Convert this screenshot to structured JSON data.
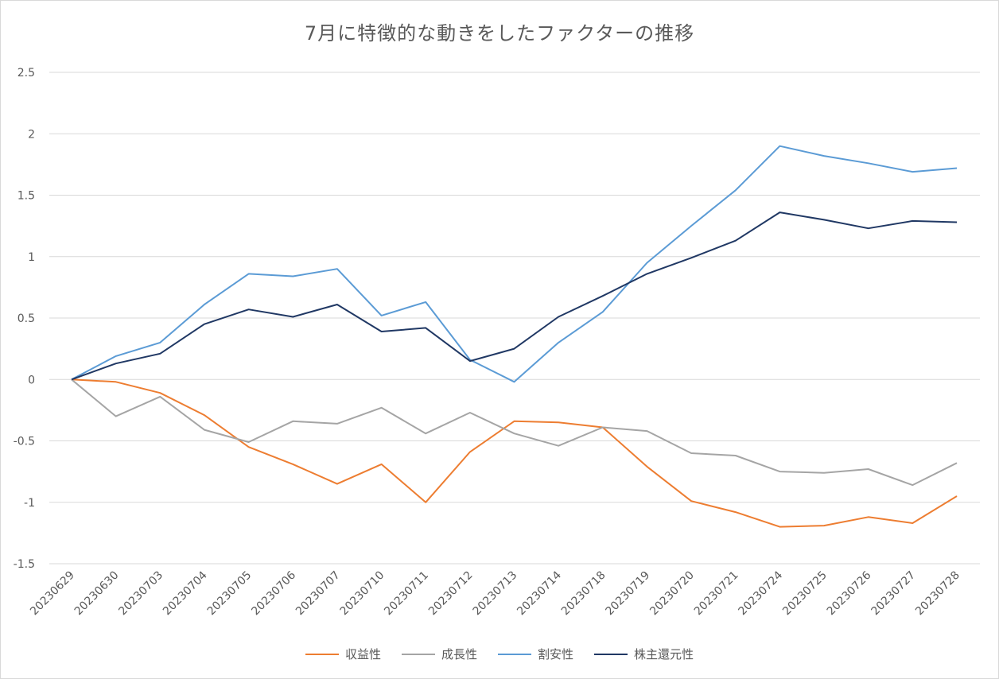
{
  "chart_data": {
    "type": "line",
    "title": "7月に特徴的な動きをしたファクターの推移",
    "xlabel": "",
    "ylabel": "",
    "ylim": [
      -1.5,
      2.5
    ],
    "yticks": [
      2.5,
      2,
      1.5,
      1,
      0.5,
      0,
      -0.5,
      -1,
      -1.5
    ],
    "ytick_labels": [
      "2.5",
      "2",
      "1.5",
      "1",
      "0.5",
      "0",
      "-0.5",
      "-1",
      "-1.5"
    ],
    "grid": true,
    "legend_position": "bottom",
    "categories": [
      "20230629",
      "20230630",
      "20230703",
      "20230704",
      "20230705",
      "20230706",
      "20230707",
      "20230710",
      "20230711",
      "20230712",
      "20230713",
      "20230714",
      "20230718",
      "20230719",
      "20230720",
      "20230721",
      "20230724",
      "20230725",
      "20230726",
      "20230727",
      "20230728"
    ],
    "series": [
      {
        "name": "収益性",
        "color": "#ED7D31",
        "values": [
          0,
          -0.02,
          -0.11,
          -0.29,
          -0.55,
          -0.69,
          -0.85,
          -0.69,
          -1.0,
          -0.59,
          -0.34,
          -0.35,
          -0.39,
          -0.71,
          -0.99,
          -1.08,
          -1.2,
          -1.19,
          -1.12,
          -1.17,
          -0.95
        ]
      },
      {
        "name": "成長性",
        "color": "#A5A5A5",
        "values": [
          0,
          -0.3,
          -0.14,
          -0.41,
          -0.51,
          -0.34,
          -0.36,
          -0.23,
          -0.44,
          -0.27,
          -0.44,
          -0.54,
          -0.39,
          -0.42,
          -0.6,
          -0.62,
          -0.75,
          -0.76,
          -0.73,
          -0.86,
          -0.68
        ]
      },
      {
        "name": "割安性",
        "color": "#5B9BD5",
        "values": [
          0,
          0.19,
          0.3,
          0.61,
          0.86,
          0.84,
          0.9,
          0.52,
          0.63,
          0.16,
          -0.02,
          0.3,
          0.55,
          0.95,
          1.25,
          1.54,
          1.9,
          1.82,
          1.76,
          1.69,
          1.72
        ]
      },
      {
        "name": "株主還元性",
        "color": "#203864",
        "values": [
          0,
          0.13,
          0.21,
          0.45,
          0.57,
          0.51,
          0.61,
          0.39,
          0.42,
          0.15,
          0.25,
          0.51,
          0.68,
          0.86,
          0.99,
          1.13,
          1.36,
          1.3,
          1.23,
          1.29,
          1.28
        ]
      }
    ]
  }
}
